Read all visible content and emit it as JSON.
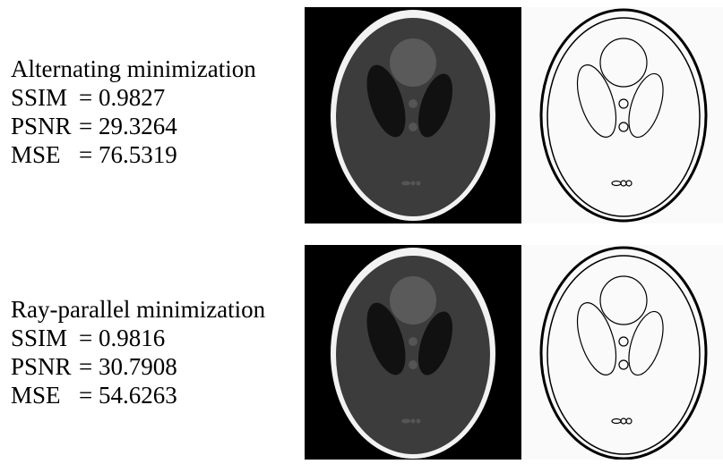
{
  "rows": [
    {
      "title": "Alternating minimization",
      "metrics": [
        {
          "label": "SSIM",
          "value": "= 0.9827"
        },
        {
          "label": "PSNR",
          "value": "= 29.3264"
        },
        {
          "label": "MSE",
          "value": "= 76.5319"
        }
      ]
    },
    {
      "title": "Ray-parallel minimization",
      "metrics": [
        {
          "label": "SSIM",
          "value": "= 0.9816"
        },
        {
          "label": "PSNR",
          "value": "= 30.7908"
        },
        {
          "label": "MSE",
          "value": "= 54.6263"
        }
      ]
    }
  ]
}
